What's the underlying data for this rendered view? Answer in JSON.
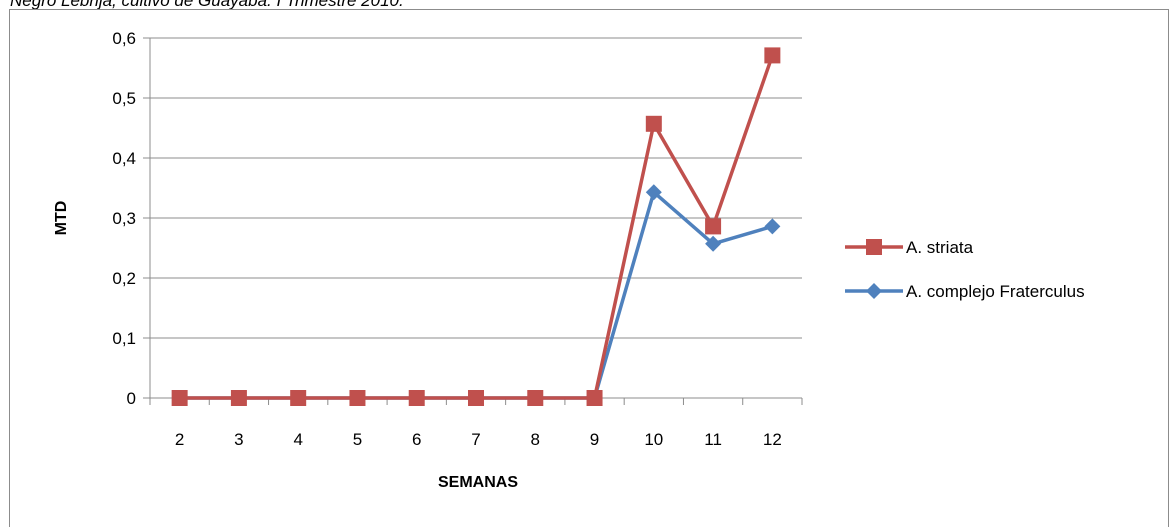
{
  "caption": "Negro Lebrija, cultivo de Guayaba. I Trimestre 2010.",
  "chart_data": {
    "type": "line",
    "xlabel": "SEMANAS",
    "ylabel": "MTD",
    "ylim": [
      0,
      0.6
    ],
    "yticks": [
      "0",
      "0,1",
      "0,2",
      "0,3",
      "0,4",
      "0,5",
      "0,6"
    ],
    "categories": [
      "2",
      "3",
      "4",
      "5",
      "6",
      "7",
      "8",
      "9",
      "10",
      "11",
      "12"
    ],
    "grid": true,
    "legend_position": "right",
    "series": [
      {
        "name": "A. striata",
        "color": "#c0504d",
        "marker": "square",
        "values": [
          0,
          0,
          0,
          0,
          0,
          0,
          0,
          0,
          0.457,
          0.286,
          0.571
        ]
      },
      {
        "name": "A. complejo Fraterculus",
        "color": "#4f81bd",
        "marker": "diamond",
        "values": [
          0,
          0,
          0,
          0,
          0,
          0,
          0,
          0,
          0.343,
          0.257,
          0.286
        ]
      }
    ]
  }
}
